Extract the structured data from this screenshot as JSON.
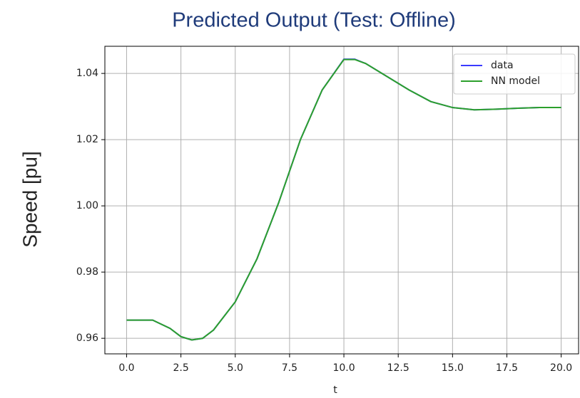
{
  "chart_data": {
    "type": "line",
    "title": "Predicted Output (Test: Offline)",
    "x_label": "t",
    "y_label": "Speed [pu]",
    "x": [
      0,
      1.2,
      2,
      2.5,
      3,
      3.5,
      4,
      5,
      6,
      7,
      7.5,
      8,
      9,
      10,
      10.5,
      11,
      12,
      13,
      14,
      15,
      16,
      17,
      18,
      19,
      20
    ],
    "series": [
      {
        "name": "data",
        "color": "#3b3bff",
        "values": [
          0.9655,
          0.9655,
          0.963,
          0.9605,
          0.9595,
          0.96,
          0.9625,
          0.971,
          0.984,
          1.001,
          1.0105,
          1.02,
          1.035,
          1.0443,
          1.0443,
          1.043,
          1.039,
          1.035,
          1.0315,
          1.0297,
          1.029,
          1.0292,
          1.0295,
          1.0297,
          1.0297
        ]
      },
      {
        "name": "NN model",
        "color": "#2ca02c",
        "values": [
          0.9655,
          0.9655,
          0.963,
          0.9605,
          0.9595,
          0.96,
          0.9625,
          0.971,
          0.984,
          1.001,
          1.0105,
          1.02,
          1.035,
          1.0442,
          1.0442,
          1.043,
          1.039,
          1.035,
          1.0315,
          1.0297,
          1.029,
          1.0292,
          1.0295,
          1.0297,
          1.0297
        ]
      }
    ],
    "xlim": [
      -1.0,
      20.8
    ],
    "ylim": [
      0.9553,
      1.0482
    ],
    "xticks": [
      {
        "value": 0,
        "label": "0.0"
      },
      {
        "value": 2.5,
        "label": "2.5"
      },
      {
        "value": 5,
        "label": "5.0"
      },
      {
        "value": 7.5,
        "label": "7.5"
      },
      {
        "value": 10,
        "label": "10.0"
      },
      {
        "value": 12.5,
        "label": "12.5"
      },
      {
        "value": 15,
        "label": "15.0"
      },
      {
        "value": 17.5,
        "label": "17.5"
      },
      {
        "value": 20,
        "label": "20.0"
      }
    ],
    "yticks": [
      0.96,
      0.98,
      {
        "value": 1.0,
        "label": "1.00"
      },
      1.02,
      1.04
    ],
    "grid": true,
    "legend": "upper right"
  }
}
